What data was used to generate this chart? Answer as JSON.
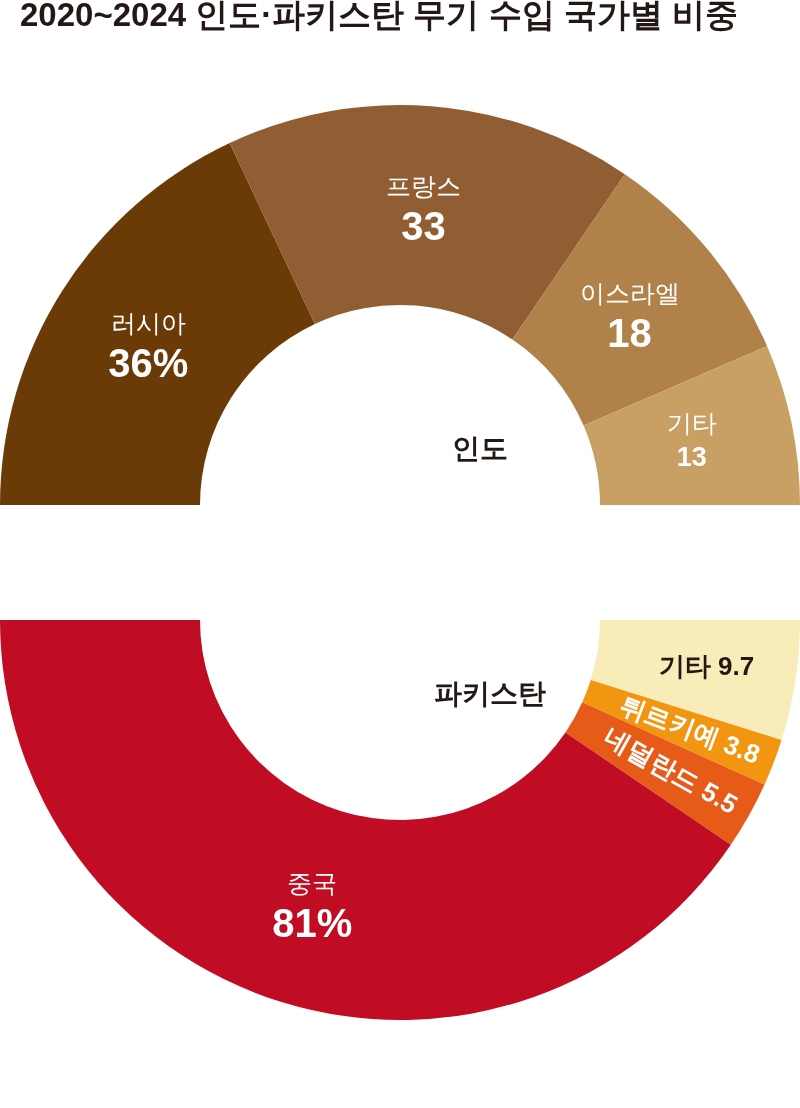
{
  "chart_data": [
    {
      "type": "donut",
      "title": "2020~2024 인도·파키스탄 무기 수입 국가별 비중",
      "categories": [
        "러시아",
        "프랑스",
        "이스라엘",
        "기타"
      ],
      "values": [
        36,
        33,
        18,
        13
      ],
      "value_labels": [
        "36%",
        "33",
        "18",
        "13"
      ],
      "colors": [
        "#6a3a07",
        "#915e33",
        "#b08149",
        "#c9a063"
      ],
      "annotations": [
        "인도"
      ]
    },
    {
      "type": "donut",
      "categories": [
        "기타",
        "튀르키예",
        "네덜란드",
        "중국"
      ],
      "values": [
        9.7,
        3.8,
        5.5,
        81
      ],
      "value_labels": [
        "9.7",
        "3.8",
        "5.5",
        "81%"
      ],
      "colors": [
        "#f8ecb8",
        "#f29611",
        "#e75b19",
        "#c10d24"
      ],
      "annotations": [
        "파키스탄"
      ]
    }
  ]
}
